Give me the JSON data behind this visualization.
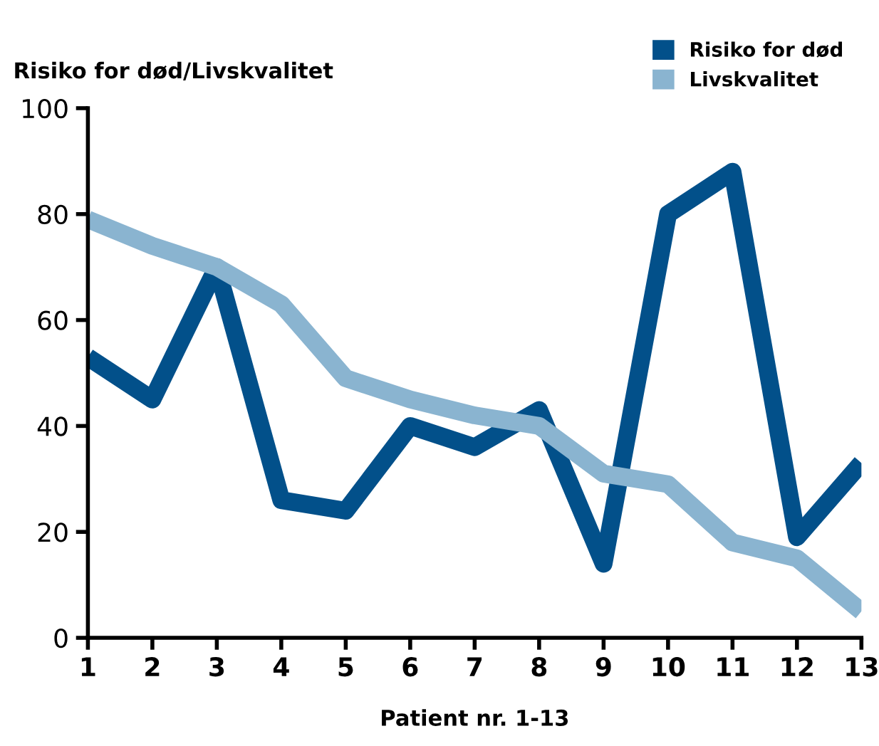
{
  "chart_data": {
    "type": "line",
    "ylabel": "Risiko for død/Livskvalitet",
    "xlabel": "Patient nr. 1-13",
    "categories": [
      "1",
      "2",
      "3",
      "4",
      "5",
      "6",
      "7",
      "8",
      "9",
      "10",
      "11",
      "12",
      "13"
    ],
    "series": [
      {
        "name": "Risiko for død",
        "color": "#02508a",
        "values": [
          53,
          45,
          70,
          26,
          24,
          40,
          36,
          43,
          14,
          80,
          88,
          19,
          33
        ]
      },
      {
        "name": "Livskvalitet",
        "color": "#8ab4d0",
        "values": [
          79,
          74,
          70,
          63,
          49,
          45,
          42,
          40,
          31,
          29,
          18,
          15,
          5
        ]
      }
    ],
    "ylim": [
      0,
      100
    ],
    "yticks": [
      0,
      20,
      40,
      60,
      80,
      100
    ],
    "grid": false,
    "legend": "top right",
    "marker": "none",
    "line_style": "solid"
  }
}
